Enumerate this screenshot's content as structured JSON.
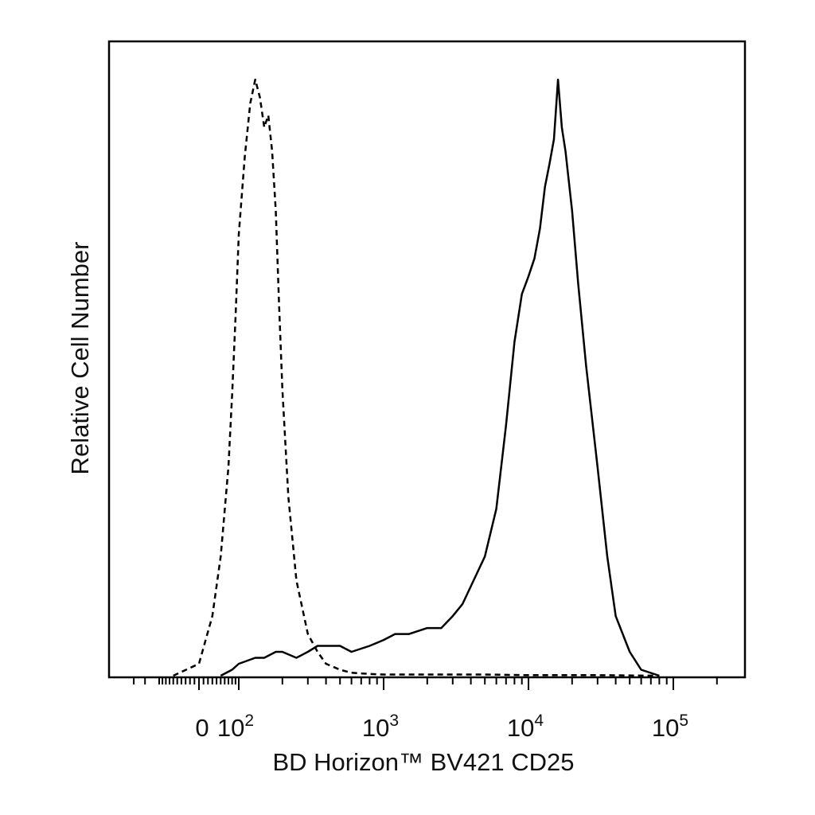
{
  "chart_data": {
    "type": "line",
    "title": "",
    "xlabel": "BD Horizon™ BV421 CD25",
    "ylabel": "Relative Cell Number",
    "x_scale": "biexponential (linear near 0, log above ~10^2)",
    "x_tick_labels": [
      {
        "value": 0,
        "base": "0",
        "exp": ""
      },
      {
        "value": 100,
        "base": "10",
        "exp": "2"
      },
      {
        "value": 1000,
        "base": "10",
        "exp": "3"
      },
      {
        "value": 10000,
        "base": "10",
        "exp": "4"
      },
      {
        "value": 100000,
        "base": "10",
        "exp": "5"
      }
    ],
    "xlim": [
      -200,
      250000
    ],
    "ylim": [
      0,
      1
    ],
    "y_ticks_shown": false,
    "grid": false,
    "legend": "none",
    "series": [
      {
        "style": "dashed",
        "x": [
          -60,
          0,
          30,
          50,
          70,
          80,
          90,
          100,
          110,
          120,
          130,
          140,
          150,
          160,
          170,
          180,
          190,
          200,
          220,
          250,
          300,
          350,
          400,
          500,
          600,
          800,
          1000,
          1500,
          2000,
          3000,
          5000,
          10000,
          30000,
          80000
        ],
        "y": [
          0.0,
          0.02,
          0.1,
          0.2,
          0.35,
          0.47,
          0.6,
          0.74,
          0.87,
          0.96,
          1.0,
          0.97,
          0.92,
          0.94,
          0.88,
          0.78,
          0.62,
          0.48,
          0.3,
          0.16,
          0.07,
          0.04,
          0.02,
          0.01,
          0.005,
          0.003,
          0.002,
          0.002,
          0.002,
          0.002,
          0.002,
          0.001,
          0.001,
          0.0
        ]
      },
      {
        "style": "solid",
        "x": [
          50,
          80,
          100,
          130,
          150,
          180,
          200,
          250,
          300,
          350,
          400,
          500,
          600,
          800,
          1000,
          1200,
          1500,
          2000,
          2500,
          3000,
          3500,
          4000,
          5000,
          6000,
          7000,
          8000,
          9000,
          10000,
          11000,
          12000,
          13000,
          14000,
          15000,
          16000,
          17000,
          18000,
          20000,
          22000,
          25000,
          30000,
          35000,
          40000,
          50000,
          60000,
          80000
        ],
        "y": [
          0.0,
          0.01,
          0.02,
          0.03,
          0.03,
          0.04,
          0.04,
          0.03,
          0.04,
          0.05,
          0.05,
          0.05,
          0.04,
          0.05,
          0.06,
          0.07,
          0.07,
          0.08,
          0.08,
          0.1,
          0.12,
          0.15,
          0.2,
          0.28,
          0.42,
          0.56,
          0.64,
          0.67,
          0.7,
          0.75,
          0.82,
          0.86,
          0.9,
          1.0,
          0.92,
          0.88,
          0.78,
          0.66,
          0.52,
          0.35,
          0.2,
          0.1,
          0.04,
          0.01,
          0.0
        ]
      }
    ]
  }
}
